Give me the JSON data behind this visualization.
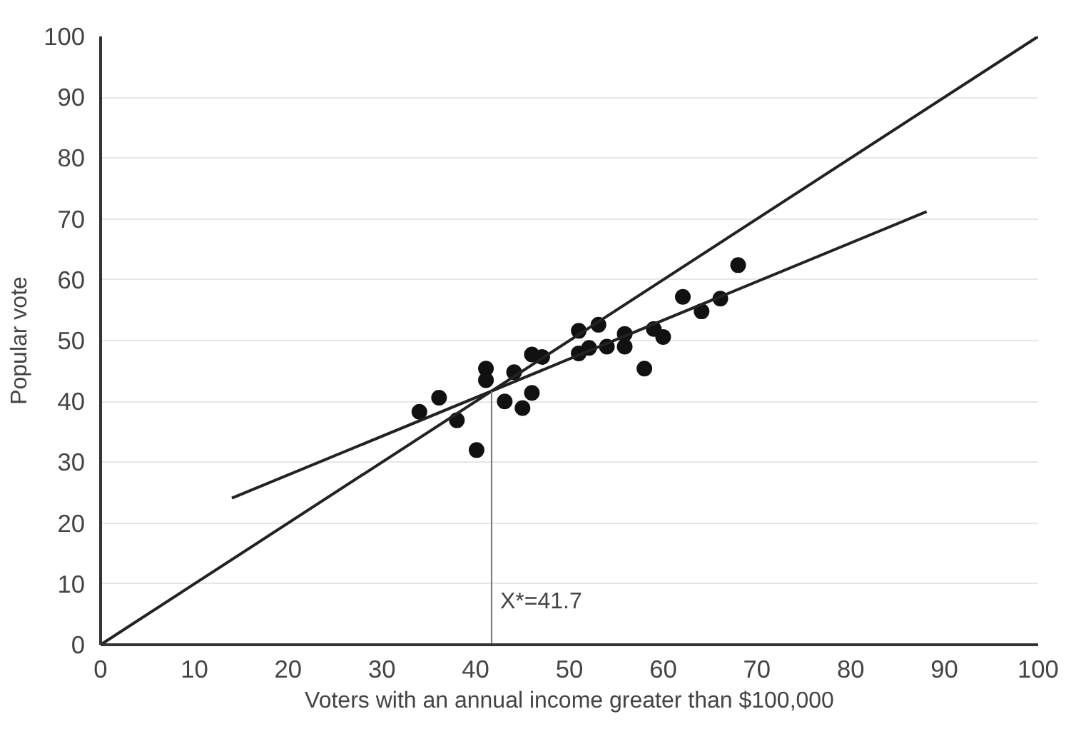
{
  "chart_data": {
    "type": "scatter",
    "xlabel": "Voters with an annual income greater than $100,000",
    "ylabel": "Popular vote",
    "xlim": [
      0,
      100
    ],
    "ylim": [
      0,
      100
    ],
    "xticks": [
      0,
      10,
      20,
      30,
      40,
      50,
      60,
      70,
      80,
      90,
      100
    ],
    "yticks": [
      0,
      10,
      20,
      30,
      40,
      50,
      60,
      70,
      80,
      90,
      100
    ],
    "grid": "y",
    "series": [
      {
        "marker": "circle",
        "color": "#111111",
        "x": [
          34.0,
          36.1,
          38.0,
          40.1,
          41.1,
          41.1,
          43.1,
          44.1,
          45.0,
          46.0,
          46.0,
          47.1,
          51.0,
          51.0,
          52.1,
          53.1,
          54.0,
          55.9,
          55.9,
          58.0,
          59.0,
          60.0,
          62.1,
          64.1,
          66.1,
          68.0
        ],
        "values": [
          38.3,
          40.6,
          36.9,
          32.0,
          45.4,
          43.5,
          40.0,
          44.8,
          38.9,
          41.4,
          47.7,
          47.3,
          51.6,
          47.9,
          48.8,
          52.6,
          49.0,
          51.1,
          49.0,
          45.4,
          51.9,
          50.6,
          57.2,
          54.8,
          56.9,
          62.4
        ]
      },
      {
        "type": "line",
        "marker": "none",
        "color": "#222222",
        "x": [
          0,
          100
        ],
        "values": [
          0,
          100
        ]
      },
      {
        "type": "line",
        "marker": "none",
        "color": "#222222",
        "x": [
          14.0,
          88.1
        ],
        "values": [
          24.1,
          71.2
        ]
      },
      {
        "type": "line",
        "marker": "none",
        "color": "#777777",
        "x": [
          41.7,
          41.7
        ],
        "values": [
          0,
          41.7
        ]
      }
    ],
    "annotations": [
      {
        "text": "X*=41.7",
        "x": 41.7,
        "y": 5
      }
    ]
  }
}
